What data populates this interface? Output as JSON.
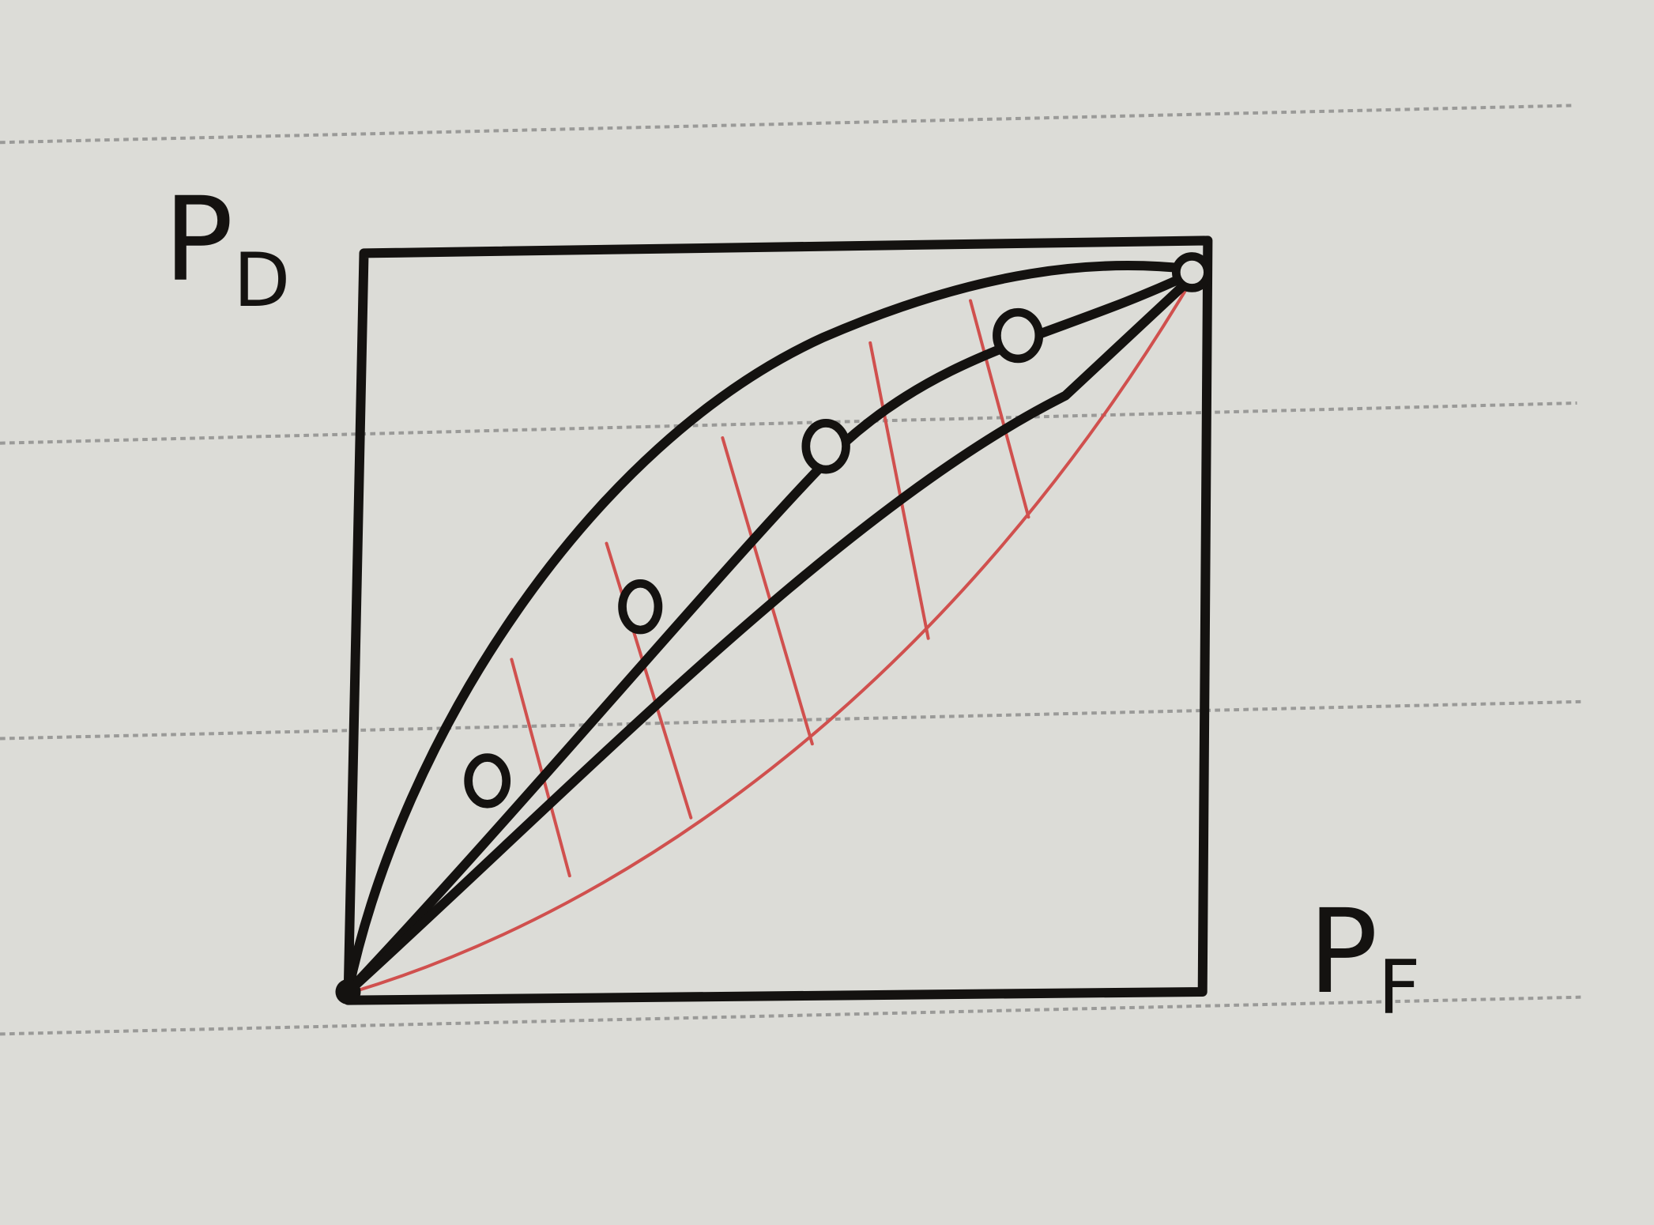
{
  "axes": {
    "y_label": {
      "main": "P",
      "sub": "D"
    },
    "x_label": {
      "main": "P",
      "sub": "F"
    }
  }
}
